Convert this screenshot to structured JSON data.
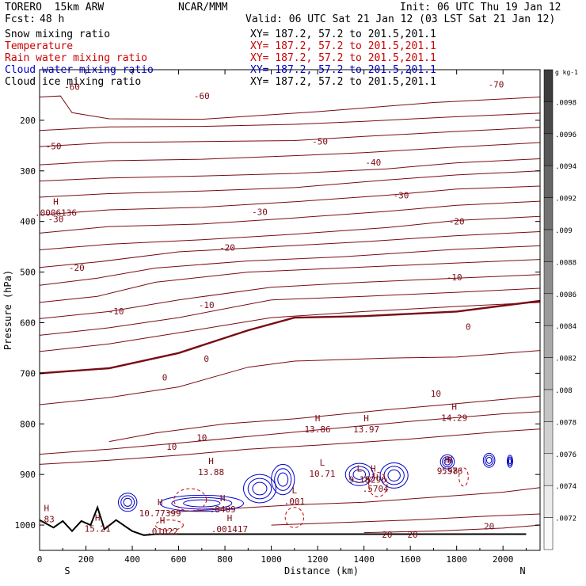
{
  "header": {
    "model": "TORERO  15km ARW",
    "org": "NCAR/MMM",
    "init": "Init: 06 UTC Thu 19 Jan 12",
    "fcst_label": "Fcst:",
    "fcst_hours": "48 h",
    "valid": "Valid: 06 UTC Sat 21 Jan 12 (03 LST Sat 21 Jan 12)"
  },
  "fields": [
    {
      "name": "Snow mixing ratio",
      "xy": "XY= 187.2, 57.2 to 201.5,201.1",
      "color": "#000000"
    },
    {
      "name": "Temperature",
      "xy": "XY= 187.2, 57.2 to 201.5,201.1",
      "color": "#cc0000"
    },
    {
      "name": "Rain water mixing ratio",
      "xy": "XY= 187.2, 57.2 to 201.5,201.1",
      "color": "#cc0000"
    },
    {
      "name": "Cloud water mixing ratio",
      "xy": "XY= 187.2, 57.2 to 201.5,201.1",
      "color": "#0000cc"
    },
    {
      "name": "Cloud ice mixing ratio",
      "xy": "XY= 187.2, 57.2 to 201.5,201.1",
      "color": "#000000"
    }
  ],
  "colors": {
    "temperature": "#7a0a14",
    "rain": "#cc0000",
    "cloud_water": "#0000cc",
    "terrain": "#000000"
  },
  "chart_data": {
    "type": "cross-section",
    "xlabel": "Distance (km)",
    "ylabel": "Pressure (hPa)",
    "x_ticks": [
      0,
      200,
      400,
      600,
      800,
      1000,
      1200,
      1400,
      1600,
      1800,
      2000
    ],
    "xlim": [
      0,
      2160
    ],
    "y_ticks": [
      200,
      300,
      400,
      500,
      600,
      700,
      800,
      900,
      1000
    ],
    "ylim": [
      1050,
      100
    ],
    "ends": {
      "left": "S",
      "right": "N"
    },
    "colorbar": {
      "unit": "g kg-1",
      "ticks": [
        ".0098",
        ".0096",
        ".0094",
        ".0092",
        ".009",
        ".0088",
        ".0086",
        ".0084",
        ".0082",
        ".008",
        ".0078",
        ".0076",
        ".0074",
        ".0072"
      ]
    },
    "isotherms": [
      {
        "label": "-70",
        "x": 1970,
        "y": 129
      },
      {
        "label": "-60",
        "x": 140,
        "y": 134
      },
      {
        "label": "-60",
        "x": 700,
        "y": 152
      },
      {
        "label": "-50",
        "x": 60,
        "y": 251
      },
      {
        "label": "-50",
        "x": 1210,
        "y": 242
      },
      {
        "label": "-40",
        "x": 1440,
        "y": 283
      },
      {
        "label": "-30",
        "x": 950,
        "y": 381
      },
      {
        "label": "-30",
        "x": 1560,
        "y": 348
      },
      {
        "label": "-30",
        "x": 70,
        "y": 395
      },
      {
        "label": "-20",
        "x": 810,
        "y": 451
      },
      {
        "label": "-20",
        "x": 1800,
        "y": 400
      },
      {
        "label": "-20",
        "x": 160,
        "y": 491
      },
      {
        "label": "-10",
        "x": 720,
        "y": 565
      },
      {
        "label": "-10",
        "x": 1790,
        "y": 510
      },
      {
        "label": "-10",
        "x": 330,
        "y": 577
      },
      {
        "label": "0",
        "x": 540,
        "y": 708
      },
      {
        "label": "0",
        "x": 720,
        "y": 671
      },
      {
        "label": "0",
        "x": 1850,
        "y": 608
      },
      {
        "label": "10",
        "x": 570,
        "y": 845
      },
      {
        "label": "10",
        "x": 700,
        "y": 827
      },
      {
        "label": "10",
        "x": 1710,
        "y": 740
      },
      {
        "label": "20",
        "x": 1500,
        "y": 1019
      },
      {
        "label": "20",
        "x": 1610,
        "y": 1019
      },
      {
        "label": "20",
        "x": 1940,
        "y": 1002
      }
    ],
    "highs_lows": [
      {
        "type": "H",
        "value": ".0006136",
        "x": 70,
        "y": 375
      },
      {
        "type": "H",
        "value": "13.88",
        "x": 740,
        "y": 887
      },
      {
        "type": "H",
        "value": "13.86",
        "x": 1200,
        "y": 803
      },
      {
        "type": "H",
        "value": "13.97",
        "x": 1410,
        "y": 803
      },
      {
        "type": "H",
        "value": "14.29",
        "x": 1790,
        "y": 780
      },
      {
        "type": "L",
        "value": "10.71",
        "x": 1220,
        "y": 890
      },
      {
        "type": "H",
        "value": "15.21",
        "x": 250,
        "y": 999
      },
      {
        "type": "H",
        "value": "10.77399",
        "x": 520,
        "y": 969
      },
      {
        "type": "H",
        "value": ".8409",
        "x": 790,
        "y": 961
      },
      {
        "type": "L",
        "value": ".001",
        "x": 1100,
        "y": 945
      },
      {
        "type": "H",
        "value": ".001417",
        "x": 820,
        "y": 1000
      },
      {
        "type": "H",
        "value": ".01022",
        "x": 530,
        "y": 1005
      },
      {
        "type": "H",
        "value": ".83",
        "x": 30,
        "y": 980
      },
      {
        "type": "L",
        "value": "9.18",
        "x": 1380,
        "y": 902
      },
      {
        "type": "H",
        "value": ".5296",
        "x": 1440,
        "y": 902
      },
      {
        "type": "H",
        "value": ".5704",
        "x": 1450,
        "y": 920
      },
      {
        "type": "H",
        "value": ".5576",
        "x": 1770,
        "y": 885
      },
      {
        "type": "H",
        "value": "9.98",
        "x": 1760,
        "y": 885
      }
    ]
  }
}
